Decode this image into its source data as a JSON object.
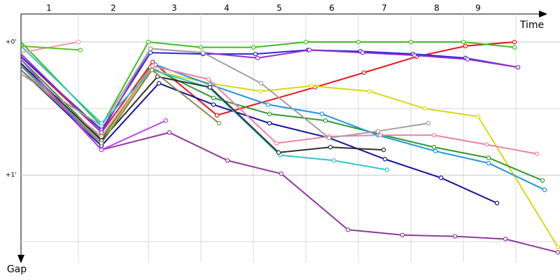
{
  "chart_data": {
    "type": "line",
    "x_label": "Time",
    "y_label": "Gap",
    "xlim": [
      0,
      770
    ],
    "ylim": [
      -0.2,
      1.63
    ],
    "yticks": [
      {
        "value": 0,
        "label": "+0'"
      },
      {
        "value": 1,
        "label": "+1'"
      }
    ],
    "minor_yticks": [
      0.5,
      1.5
    ],
    "xticks": [
      {
        "value": 40,
        "label": "1"
      },
      {
        "value": 132,
        "label": "2"
      },
      {
        "value": 219,
        "label": "3"
      },
      {
        "value": 294,
        "label": "4"
      },
      {
        "value": 369,
        "label": "5"
      },
      {
        "value": 444,
        "label": "6"
      },
      {
        "value": 519,
        "label": "7"
      },
      {
        "value": 594,
        "label": "8"
      },
      {
        "value": 653,
        "label": "9"
      }
    ],
    "x_grid": [
      82,
      182,
      257,
      332,
      407,
      482,
      557,
      632,
      707
    ],
    "grid": true,
    "y_inverted": true,
    "series": [
      {
        "color": "#e8141c",
        "x": [
          0,
          115,
          188,
          280,
          420,
          490,
          565,
          635,
          705
        ],
        "values": [
          0.11,
          0.68,
          0.15,
          0.55,
          0.34,
          0.23,
          0.11,
          0.03,
          0
        ]
      },
      {
        "color": "#8e3a9c",
        "x": [
          0,
          115,
          212,
          295,
          372,
          467,
          545,
          620,
          692,
          767
        ],
        "values": [
          0.16,
          0.81,
          0.68,
          0.89,
          0.99,
          1.41,
          1.45,
          1.46,
          1.48,
          1.58
        ]
      },
      {
        "color": "#d8d814",
        "x": [
          0,
          115,
          185,
          270,
          342,
          415,
          498,
          577,
          653,
          767
        ],
        "values": [
          0.18,
          0.74,
          0.21,
          0.31,
          0.37,
          0.33,
          0.37,
          0.5,
          0.56,
          1.54
        ]
      },
      {
        "color": "#3cbf1c",
        "x": [
          0,
          115,
          182,
          257,
          332,
          407,
          482,
          557,
          632,
          705
        ],
        "values": [
          0,
          0.63,
          0,
          0.04,
          0.04,
          0,
          0,
          0,
          0,
          0.04
        ]
      },
      {
        "color": "#2e9a2e",
        "x": [
          0,
          115,
          185,
          275,
          355,
          435,
          510,
          590,
          668,
          745
        ],
        "values": [
          0.13,
          0.73,
          0.19,
          0.42,
          0.54,
          0.59,
          0.69,
          0.79,
          0.87,
          1.04
        ]
      },
      {
        "color": "#1e96e0",
        "x": [
          0,
          115,
          192,
          270,
          353,
          430,
          510,
          592,
          668,
          748
        ],
        "values": [
          0.18,
          0.76,
          0.17,
          0.32,
          0.47,
          0.54,
          0.7,
          0.82,
          0.91,
          1.11
        ]
      },
      {
        "color": "#14149a",
        "x": [
          0,
          115,
          197,
          275,
          355,
          440,
          520,
          600,
          680
        ],
        "values": [
          0.21,
          0.78,
          0.31,
          0.47,
          0.61,
          0.72,
          0.88,
          1.02,
          1.21
        ]
      },
      {
        "color": "#2828e0",
        "x": [
          0,
          115,
          185,
          260,
          335,
          410,
          485,
          560,
          635,
          710
        ],
        "values": [
          0.11,
          0.66,
          0.08,
          0.09,
          0.09,
          0.06,
          0.07,
          0.09,
          0.12,
          0.19
        ]
      },
      {
        "color": "#9a30c8",
        "x": [
          0,
          115,
          185,
          260,
          338,
          412,
          488,
          562,
          638,
          710
        ],
        "values": [
          0.09,
          0.68,
          0.05,
          0.08,
          0.12,
          0.06,
          0.08,
          0.1,
          0.13,
          0.19
        ]
      },
      {
        "color": "#f080a8",
        "x": [
          0,
          115,
          188,
          268,
          365,
          440,
          513,
          590,
          665,
          737
        ],
        "values": [
          0.21,
          0.71,
          0.18,
          0.28,
          0.76,
          0.71,
          0.7,
          0.7,
          0.77,
          0.84
        ]
      },
      {
        "color": "#a0a0a0",
        "x": [
          0,
          115,
          185,
          260,
          343,
          440,
          510,
          582
        ],
        "values": [
          0.24,
          0.63,
          0.05,
          0.08,
          0.31,
          0.72,
          0.67,
          0.61
        ]
      },
      {
        "color": "#30c8c8",
        "x": [
          0,
          115,
          188,
          268,
          370,
          447,
          523
        ],
        "values": [
          0.03,
          0.61,
          0.21,
          0.34,
          0.85,
          0.89,
          0.96
        ]
      },
      {
        "color": "#303030",
        "x": [
          0,
          115,
          195,
          270,
          368,
          442,
          518
        ],
        "values": [
          0.16,
          0.74,
          0.26,
          0.34,
          0.83,
          0.79,
          0.81
        ]
      },
      {
        "color": "#8a8a50",
        "x": [
          0,
          115,
          187,
          283
        ],
        "values": [
          0.21,
          0.76,
          0.21,
          0.61
        ]
      },
      {
        "color": "#f0a0a0",
        "x": [
          0,
          82
        ],
        "values": [
          0.08,
          0
        ]
      },
      {
        "color": "#60c020",
        "x": [
          0,
          85
        ],
        "values": [
          0.03,
          0.06
        ]
      },
      {
        "color": "#c040f0",
        "x": [
          0,
          115,
          207
        ],
        "values": [
          0.13,
          0.81,
          0.59
        ]
      }
    ]
  }
}
